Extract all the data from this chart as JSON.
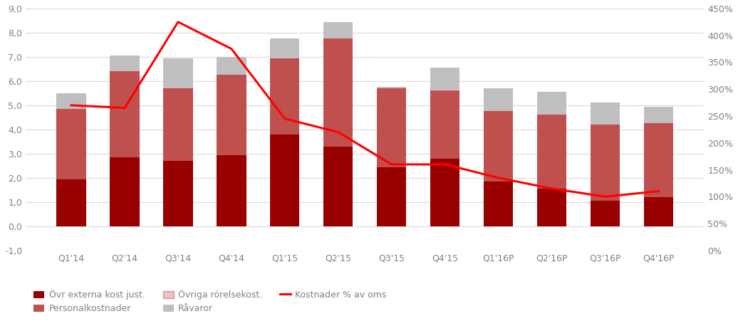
{
  "categories": [
    "Q1'14",
    "Q2'14",
    "Q3'14",
    "Q4'14",
    "Q1'15",
    "Q2'15",
    "Q3'15",
    "Q4'15",
    "Q1'16P",
    "Q2'16P",
    "Q3'16P",
    "Q4'16P"
  ],
  "ovr_externa": [
    1.95,
    2.85,
    2.7,
    2.95,
    3.8,
    3.3,
    2.45,
    2.8,
    1.85,
    1.55,
    1.05,
    1.2
  ],
  "personalkostnader": [
    2.9,
    3.55,
    3.0,
    3.3,
    3.15,
    4.45,
    3.25,
    2.8,
    2.9,
    3.05,
    3.15,
    3.05
  ],
  "ovriga_rorsekost": [
    0.0,
    0.0,
    0.0,
    0.0,
    0.0,
    0.0,
    0.0,
    0.05,
    0.0,
    0.0,
    0.0,
    0.0
  ],
  "ravaror": [
    0.65,
    0.65,
    1.25,
    0.75,
    0.8,
    0.7,
    0.05,
    0.9,
    0.95,
    0.95,
    0.9,
    0.7
  ],
  "line_pct": [
    0.27,
    0.265,
    0.425,
    0.375,
    0.245,
    0.22,
    0.16,
    0.16,
    0.135,
    0.115,
    0.1,
    0.11
  ],
  "color_ovr_externa": "#990000",
  "color_personalkostnader": "#c0504d",
  "color_ovriga": "#f2c0be",
  "color_ravaror": "#bfbfbf",
  "color_line": "#ff0000",
  "ylim_left": [
    -1.0,
    9.0
  ],
  "yticks_left": [
    -1.0,
    0.0,
    1.0,
    2.0,
    3.0,
    4.0,
    5.0,
    6.0,
    7.0,
    8.0,
    9.0
  ],
  "right_ticks_pct": [
    0.0,
    0.05,
    0.1,
    0.15,
    0.2,
    0.25,
    0.3,
    0.35,
    0.4,
    0.45
  ],
  "legend_labels": [
    "Övr externa kost just.",
    "Personalkostnader",
    "Övriga rörelsekost.",
    "Råvaror",
    "Kostnader % av oms"
  ],
  "background_color": "#ffffff",
  "grid_color": "#d9d9d9",
  "tick_label_color": "#808080",
  "bar_width": 0.55
}
